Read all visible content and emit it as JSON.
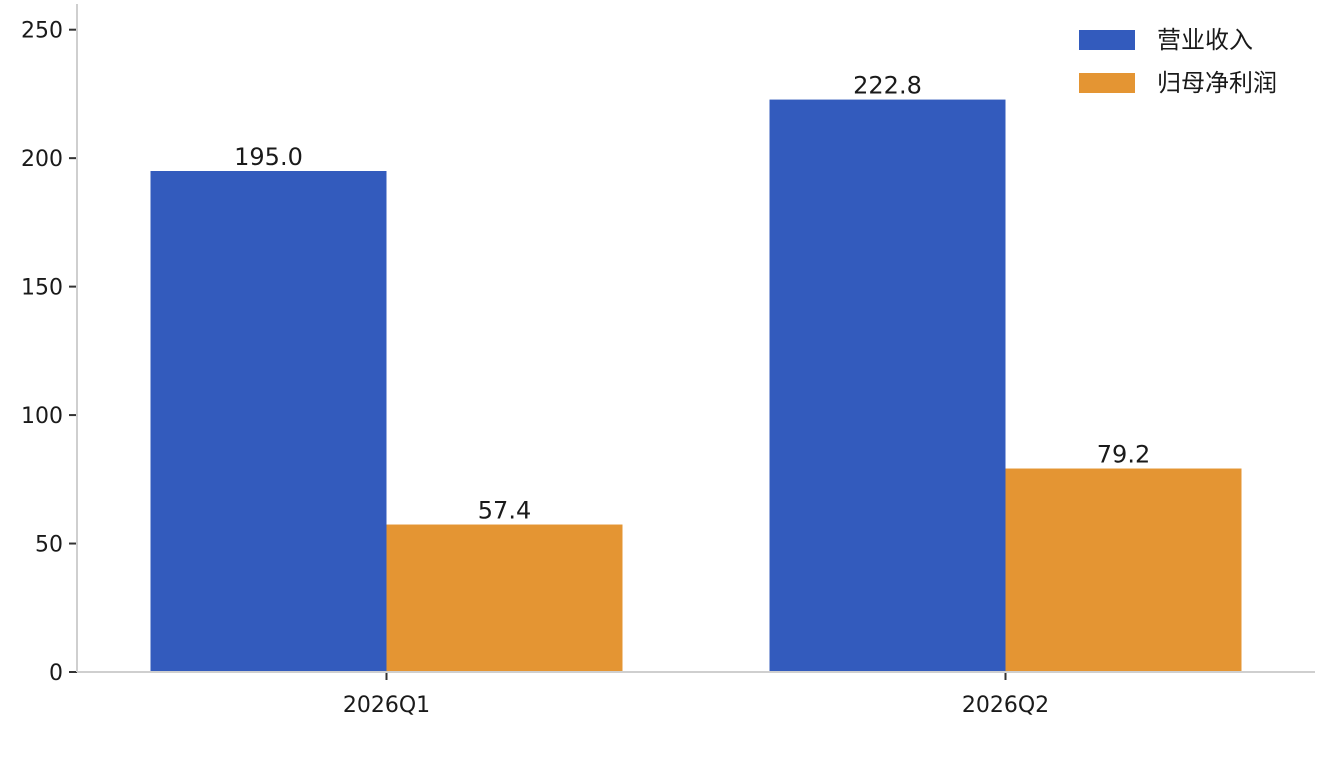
{
  "chart_data": {
    "type": "bar",
    "title": "",
    "xlabel": "",
    "ylabel": "",
    "categories": [
      "2026Q1",
      "2026Q2"
    ],
    "series": [
      {
        "name": "营业收入",
        "values": [
          195.0,
          222.8
        ],
        "value_labels": [
          "195.0",
          "222.8"
        ],
        "color": "#335bbd"
      },
      {
        "name": "归母净利润",
        "values": [
          57.4,
          79.2
        ],
        "value_labels": [
          "57.4",
          "79.2"
        ],
        "color": "#e49533"
      }
    ],
    "yticks": [
      0,
      50,
      100,
      150,
      200,
      250
    ],
    "ylim": [
      0,
      260
    ],
    "grid": false,
    "legend_position": "top-right"
  }
}
